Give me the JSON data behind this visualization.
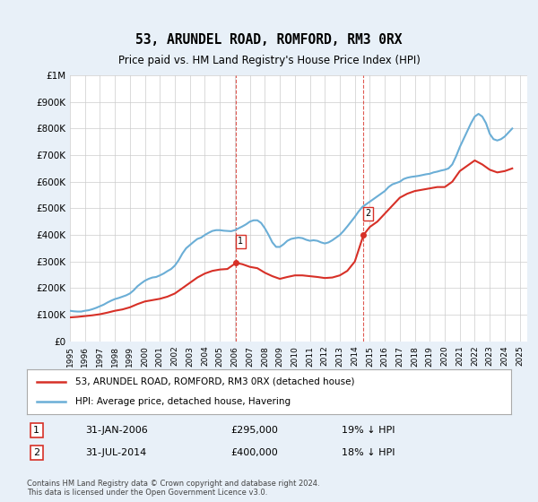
{
  "title": "53, ARUNDEL ROAD, ROMFORD, RM3 0RX",
  "subtitle": "Price paid vs. HM Land Registry's House Price Index (HPI)",
  "xlabel": "",
  "ylabel": "",
  "ylim": [
    0,
    1000000
  ],
  "yticks": [
    0,
    100000,
    200000,
    300000,
    400000,
    500000,
    600000,
    700000,
    800000,
    900000,
    1000000
  ],
  "ytick_labels": [
    "£0",
    "£100K",
    "£200K",
    "£300K",
    "£400K",
    "£500K",
    "£600K",
    "£700K",
    "£800K",
    "£900K",
    "£1M"
  ],
  "xlim_start": 1995.0,
  "xlim_end": 2025.5,
  "hpi_color": "#6baed6",
  "property_color": "#d73027",
  "vline_color": "#d73027",
  "background_color": "#e8f0f8",
  "plot_bg_color": "#ffffff",
  "grid_color": "#cccccc",
  "transactions": [
    {
      "id": 1,
      "date": "31-JAN-2006",
      "price": 295000,
      "hpi_pct": "19% ↓ HPI",
      "year": 2006.08
    },
    {
      "id": 2,
      "date": "31-JUL-2014",
      "price": 400000,
      "hpi_pct": "18% ↓ HPI",
      "year": 2014.58
    }
  ],
  "legend_line1": "53, ARUNDEL ROAD, ROMFORD, RM3 0RX (detached house)",
  "legend_line2": "HPI: Average price, detached house, Havering",
  "footer": "Contains HM Land Registry data © Crown copyright and database right 2024.\nThis data is licensed under the Open Government Licence v3.0.",
  "hpi_data_x": [
    1995.0,
    1995.25,
    1995.5,
    1995.75,
    1996.0,
    1996.25,
    1996.5,
    1996.75,
    1997.0,
    1997.25,
    1997.5,
    1997.75,
    1998.0,
    1998.25,
    1998.5,
    1998.75,
    1999.0,
    1999.25,
    1999.5,
    1999.75,
    2000.0,
    2000.25,
    2000.5,
    2000.75,
    2001.0,
    2001.25,
    2001.5,
    2001.75,
    2002.0,
    2002.25,
    2002.5,
    2002.75,
    2003.0,
    2003.25,
    2003.5,
    2003.75,
    2004.0,
    2004.25,
    2004.5,
    2004.75,
    2005.0,
    2005.25,
    2005.5,
    2005.75,
    2006.0,
    2006.25,
    2006.5,
    2006.75,
    2007.0,
    2007.25,
    2007.5,
    2007.75,
    2008.0,
    2008.25,
    2008.5,
    2008.75,
    2009.0,
    2009.25,
    2009.5,
    2009.75,
    2010.0,
    2010.25,
    2010.5,
    2010.75,
    2011.0,
    2011.25,
    2011.5,
    2011.75,
    2012.0,
    2012.25,
    2012.5,
    2012.75,
    2013.0,
    2013.25,
    2013.5,
    2013.75,
    2014.0,
    2014.25,
    2014.5,
    2014.75,
    2015.0,
    2015.25,
    2015.5,
    2015.75,
    2016.0,
    2016.25,
    2016.5,
    2016.75,
    2017.0,
    2017.25,
    2017.5,
    2017.75,
    2018.0,
    2018.25,
    2018.5,
    2018.75,
    2019.0,
    2019.25,
    2019.5,
    2019.75,
    2020.0,
    2020.25,
    2020.5,
    2020.75,
    2021.0,
    2021.25,
    2021.5,
    2021.75,
    2022.0,
    2022.25,
    2022.5,
    2022.75,
    2023.0,
    2023.25,
    2023.5,
    2023.75,
    2024.0,
    2024.25,
    2024.5
  ],
  "hpi_data_y": [
    115000,
    113000,
    112000,
    112000,
    115000,
    117000,
    121000,
    126000,
    132000,
    138000,
    146000,
    153000,
    159000,
    163000,
    168000,
    173000,
    180000,
    192000,
    207000,
    218000,
    228000,
    235000,
    240000,
    242000,
    248000,
    255000,
    264000,
    272000,
    285000,
    305000,
    330000,
    350000,
    362000,
    374000,
    385000,
    390000,
    400000,
    408000,
    415000,
    418000,
    418000,
    416000,
    415000,
    414000,
    418000,
    425000,
    432000,
    440000,
    450000,
    455000,
    455000,
    445000,
    425000,
    400000,
    372000,
    355000,
    355000,
    365000,
    378000,
    385000,
    388000,
    390000,
    388000,
    382000,
    378000,
    380000,
    378000,
    372000,
    368000,
    372000,
    380000,
    390000,
    400000,
    415000,
    432000,
    450000,
    468000,
    488000,
    505000,
    515000,
    525000,
    535000,
    545000,
    555000,
    565000,
    580000,
    590000,
    595000,
    600000,
    610000,
    615000,
    618000,
    620000,
    622000,
    625000,
    628000,
    630000,
    635000,
    638000,
    642000,
    645000,
    650000,
    665000,
    695000,
    730000,
    760000,
    790000,
    820000,
    845000,
    855000,
    845000,
    820000,
    780000,
    760000,
    755000,
    760000,
    770000,
    785000,
    800000
  ],
  "property_data_x": [
    1995.0,
    1995.5,
    1996.0,
    1996.5,
    1997.0,
    1997.5,
    1998.0,
    1998.5,
    1999.0,
    1999.5,
    2000.0,
    2000.5,
    2001.0,
    2001.5,
    2002.0,
    2002.5,
    2003.0,
    2003.5,
    2004.0,
    2004.5,
    2005.0,
    2005.5,
    2006.08,
    2006.5,
    2007.0,
    2007.5,
    2008.0,
    2008.5,
    2009.0,
    2009.5,
    2010.0,
    2010.5,
    2011.0,
    2011.5,
    2012.0,
    2012.5,
    2013.0,
    2013.5,
    2014.0,
    2014.58,
    2015.0,
    2015.5,
    2016.0,
    2016.5,
    2017.0,
    2017.5,
    2018.0,
    2018.5,
    2019.0,
    2019.5,
    2020.0,
    2020.5,
    2021.0,
    2021.5,
    2022.0,
    2022.5,
    2023.0,
    2023.5,
    2024.0,
    2024.5
  ],
  "property_data_y": [
    90000,
    92000,
    95000,
    98000,
    102000,
    108000,
    115000,
    120000,
    128000,
    140000,
    150000,
    155000,
    160000,
    168000,
    180000,
    200000,
    220000,
    240000,
    255000,
    265000,
    270000,
    272000,
    295000,
    290000,
    280000,
    275000,
    258000,
    245000,
    235000,
    242000,
    248000,
    248000,
    245000,
    242000,
    238000,
    240000,
    248000,
    265000,
    300000,
    400000,
    430000,
    450000,
    480000,
    510000,
    540000,
    555000,
    565000,
    570000,
    575000,
    580000,
    580000,
    600000,
    640000,
    660000,
    680000,
    665000,
    645000,
    635000,
    640000,
    650000
  ]
}
